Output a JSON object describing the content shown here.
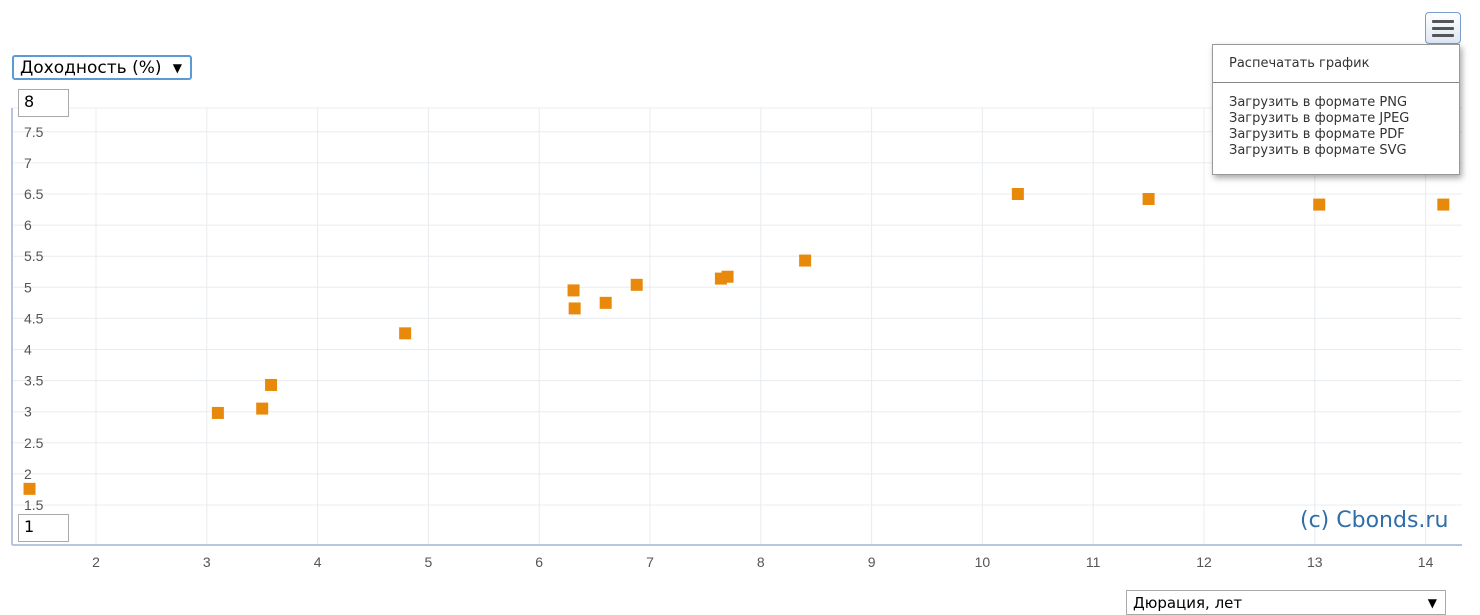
{
  "controls": {
    "y_axis_select": "Доходность (%)",
    "y_max": "8",
    "y_min": "1",
    "x_axis_select": "Дюрация, лет",
    "dropdown_arrow": "▼"
  },
  "export_menu": {
    "icon": "hamburger-menu-icon",
    "print": "Распечатать график",
    "download_png": "Загрузить в формате PNG",
    "download_jpeg": "Загрузить в формате JPEG",
    "download_pdf": "Загрузить в формате PDF",
    "download_svg": "Загрузить в формате SVG"
  },
  "credit": "(c) Cbonds.ru",
  "colors": {
    "marker": "#e8890c",
    "grid": "#e8ecef",
    "axis": "#b7c6de"
  },
  "chart_data": {
    "type": "scatter",
    "xlim": [
      1.4,
      14.2
    ],
    "ylim": [
      1.25,
      7.8
    ],
    "x_ticks": [
      2,
      3,
      4,
      5,
      6,
      7,
      8,
      9,
      10,
      11,
      12,
      13,
      14
    ],
    "y_ticks": [
      1.5,
      2,
      2.5,
      3,
      3.5,
      4,
      4.5,
      5,
      5.5,
      6,
      6.5,
      7,
      7.5
    ],
    "grid": true,
    "series": [
      {
        "points": [
          {
            "x": 1.4,
            "y": 1.76
          },
          {
            "x": 3.1,
            "y": 2.98
          },
          {
            "x": 3.5,
            "y": 3.05
          },
          {
            "x": 3.58,
            "y": 3.43
          },
          {
            "x": 4.79,
            "y": 4.26
          },
          {
            "x": 6.31,
            "y": 4.95
          },
          {
            "x": 6.32,
            "y": 4.66
          },
          {
            "x": 6.6,
            "y": 4.75
          },
          {
            "x": 6.88,
            "y": 5.04
          },
          {
            "x": 7.64,
            "y": 5.14
          },
          {
            "x": 7.7,
            "y": 5.17
          },
          {
            "x": 8.4,
            "y": 5.43
          },
          {
            "x": 10.32,
            "y": 6.5
          },
          {
            "x": 11.5,
            "y": 6.42
          },
          {
            "x": 13.04,
            "y": 6.33
          },
          {
            "x": 14.16,
            "y": 6.33
          }
        ]
      }
    ]
  }
}
